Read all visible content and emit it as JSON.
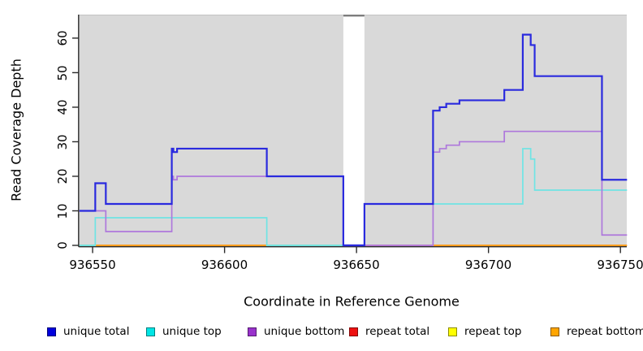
{
  "chart_data": {
    "type": "line",
    "step": true,
    "title": "",
    "xlabel": "Coordinate in Reference Genome",
    "ylabel": "Read Coverage Depth",
    "xlim": [
      936544.9,
      936752.4
    ],
    "ylim": [
      0,
      66.8
    ],
    "x_ticks": [
      "936550",
      "936600",
      "936650",
      "936700",
      "936750"
    ],
    "y_ticks": [
      "0",
      "10",
      "20",
      "30",
      "40",
      "50",
      "60"
    ],
    "plot_bg": "#d9d9d9",
    "grid": false,
    "legend_position": "bottom",
    "masked_region": {
      "from": 936645,
      "to": 936653
    },
    "series": [
      {
        "name": "unique total",
        "color": "#2a2ade",
        "width": 2.2,
        "z": 7,
        "segments": [
          [
            [
              936545,
              10
            ],
            [
              936551,
              18
            ],
            [
              936555,
              12
            ],
            [
              936580,
              28
            ],
            [
              936580.6,
              27
            ],
            [
              936582,
              28
            ],
            [
              936616,
              20
            ],
            [
              936645,
              0
            ],
            [
              936653,
              12
            ],
            [
              936679,
              39
            ],
            [
              936681.5,
              40
            ],
            [
              936684,
              41
            ],
            [
              936689,
              42
            ],
            [
              936706,
              45
            ],
            [
              936713,
              61
            ],
            [
              936716,
              58
            ],
            [
              936717.5,
              49
            ],
            [
              936743,
              19
            ],
            [
              936752.5,
              19
            ]
          ]
        ]
      },
      {
        "name": "unique top",
        "color": "#6fe4e4",
        "width": 1.7,
        "z": 5,
        "segments": [
          [
            [
              936545,
              0
            ],
            [
              936551,
              8
            ],
            [
              936616,
              0
            ],
            [
              936653,
              12
            ],
            [
              936713,
              28
            ],
            [
              936716,
              25
            ],
            [
              936717.5,
              16
            ],
            [
              936752.5,
              16
            ]
          ]
        ]
      },
      {
        "name": "unique bottom",
        "color": "#ae78dc",
        "width": 1.7,
        "z": 6,
        "segments": [
          [
            [
              936545,
              10
            ],
            [
              936555,
              4
            ],
            [
              936580,
              20
            ],
            [
              936580.6,
              19
            ],
            [
              936582,
              20
            ],
            [
              936645,
              0
            ],
            [
              936679,
              27
            ],
            [
              936681.5,
              28
            ],
            [
              936684,
              29
            ],
            [
              936689,
              30
            ],
            [
              936706,
              33
            ],
            [
              936743,
              3
            ],
            [
              936752.5,
              3
            ]
          ]
        ]
      },
      {
        "name": "repeat total",
        "color": "#c75a78",
        "width": 1.7,
        "z": 3,
        "segments": [
          [
            [
              936653,
              0
            ],
            [
              936679,
              0
            ]
          ]
        ]
      },
      {
        "name": "repeat top",
        "color": "#ffff00",
        "width": 1.7,
        "z": 0,
        "segments": []
      },
      {
        "name": "repeat bottom",
        "color": "#ff9d1e",
        "width": 2,
        "z": 1,
        "segments": [
          [
            [
              936551,
              0
            ],
            [
              936616,
              0
            ]
          ],
          [
            [
              936679,
              0
            ],
            [
              936752.5,
              0
            ]
          ]
        ]
      }
    ],
    "overlay_blends": [
      {
        "name": "cyan-orange-zero-blend",
        "color": "#8fd6a2",
        "width": 2,
        "z": 2,
        "segments": [
          [
            [
              936545,
              0
            ],
            [
              936551,
              0
            ]
          ],
          [
            [
              936616,
              0
            ],
            [
              936645,
              0
            ]
          ]
        ]
      },
      {
        "name": "blue-purple-zero-blend",
        "color": "#5a50d8",
        "width": 2.2,
        "z": 4,
        "segments": [
          [
            [
              936645,
              0
            ],
            [
              936653,
              0
            ]
          ]
        ]
      }
    ]
  },
  "legend": {
    "items": [
      {
        "label": "unique total",
        "color": "#0000dd"
      },
      {
        "label": "unique top",
        "color": "#00e5e5"
      },
      {
        "label": "unique bottom",
        "color": "#9932cc"
      },
      {
        "label": "repeat total",
        "color": "#ee1111"
      },
      {
        "label": "repeat top",
        "color": "#ffff00"
      },
      {
        "label": "repeat bottom",
        "color": "#ffa500"
      }
    ]
  }
}
